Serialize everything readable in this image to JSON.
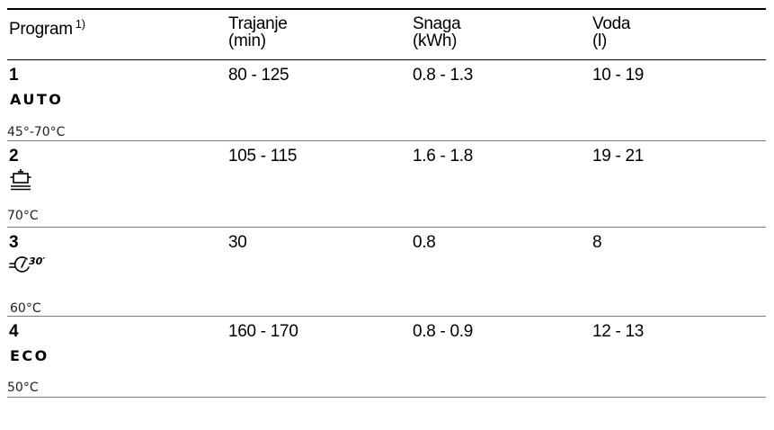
{
  "header": {
    "program_label": "Program",
    "program_footnote": "1)",
    "duration_line1": "Trajanje",
    "duration_line2": "(min)",
    "power_line1": "Snaga",
    "power_line2": "(kWh)",
    "water_line1": "Voda",
    "water_line2": "(l)"
  },
  "rows": [
    {
      "number": "1",
      "name": "AUTO",
      "icon": null,
      "temp": "45°-70°C",
      "duration": "80 - 125",
      "power": "0.8 - 1.3",
      "water": "10 - 19"
    },
    {
      "number": "2",
      "name": "",
      "icon": "pot-plate-icon",
      "temp": "70°C",
      "duration": "105 - 115",
      "power": "1.6 - 1.8",
      "water": "19 - 21"
    },
    {
      "number": "3",
      "name": "",
      "icon": "quick-30-icon",
      "temp": "60°C",
      "duration": "30",
      "power": "0.8",
      "water": "8"
    },
    {
      "number": "4",
      "name": "ECO",
      "icon": null,
      "temp": "50°C",
      "duration": "160 - 170",
      "power": "0.8 - 0.9",
      "water": "12 - 13"
    }
  ]
}
